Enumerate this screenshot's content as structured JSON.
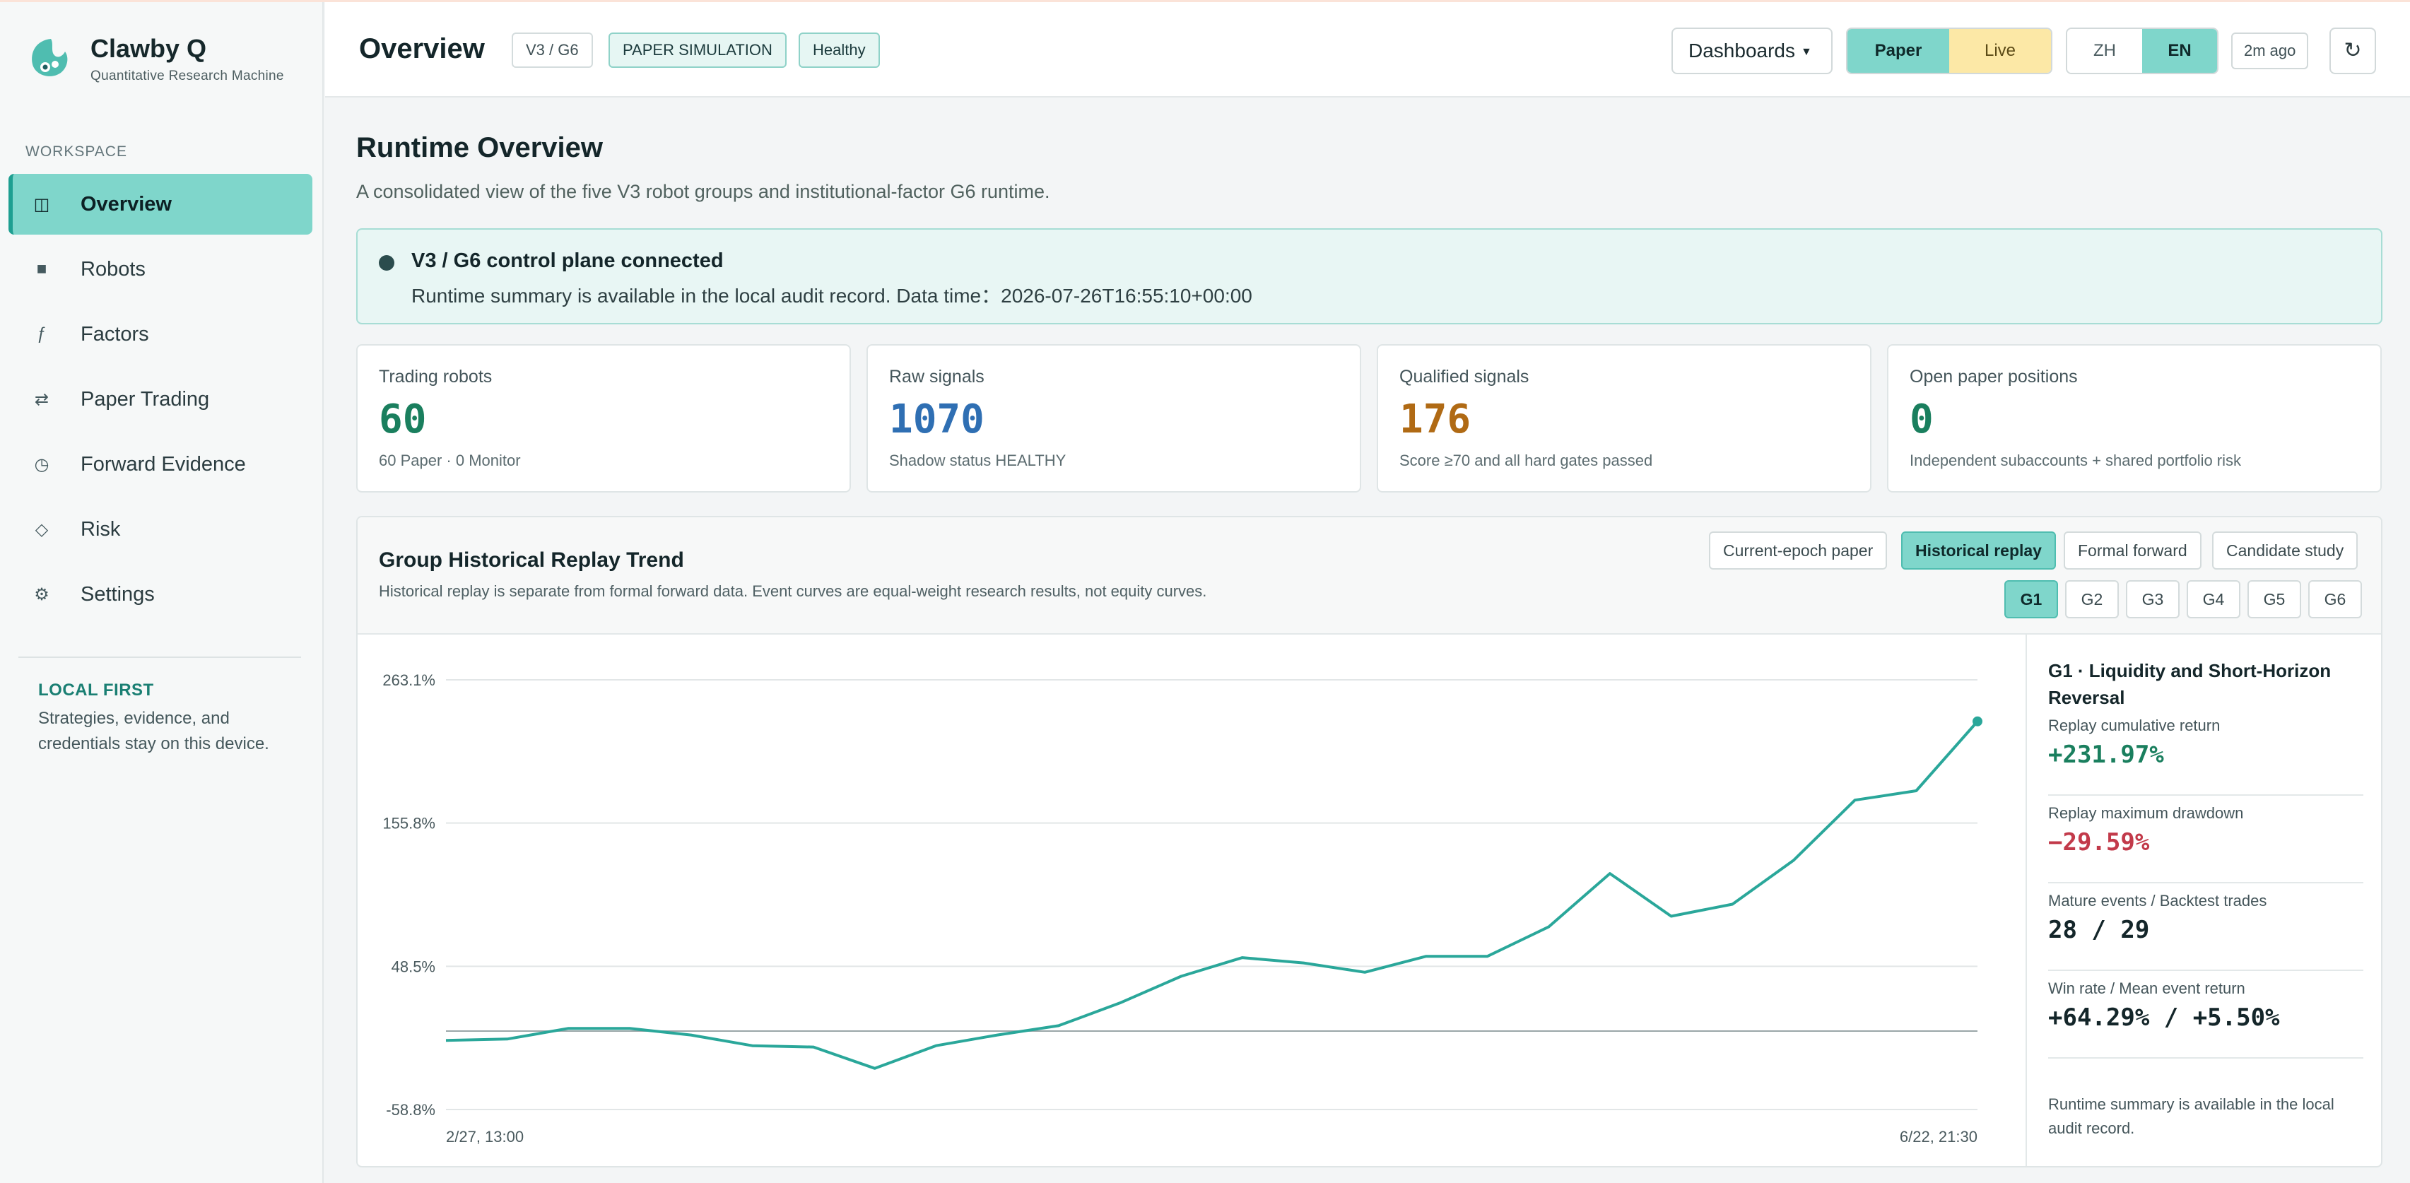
{
  "brand": {
    "name": "Clawby Q",
    "subtitle": "Quantitative Research Machine"
  },
  "sidebar": {
    "section_label": "WORKSPACE",
    "items": [
      {
        "label": "Overview",
        "icon": "layout-icon",
        "glyph": "◫",
        "active": true
      },
      {
        "label": "Robots",
        "icon": "robot-icon",
        "glyph": "■",
        "active": false
      },
      {
        "label": "Factors",
        "icon": "function-icon",
        "glyph": "ƒ",
        "active": false
      },
      {
        "label": "Paper Trading",
        "icon": "swap-icon",
        "glyph": "⇄",
        "active": false
      },
      {
        "label": "Forward Evidence",
        "icon": "clock-icon",
        "glyph": "◷",
        "active": false
      },
      {
        "label": "Risk",
        "icon": "diamond-icon",
        "glyph": "◇",
        "active": false
      },
      {
        "label": "Settings",
        "icon": "gear-icon",
        "glyph": "⚙",
        "active": false
      }
    ],
    "local_first": {
      "title": "LOCAL FIRST",
      "text": "Strategies, evidence, and credentials stay on this device."
    }
  },
  "header": {
    "title": "Overview",
    "chips": [
      "V3 / G6",
      "PAPER SIMULATION",
      "Healthy"
    ],
    "dashboards_label": "Dashboards",
    "mode": {
      "paper": "Paper",
      "live": "Live",
      "selected": "Paper"
    },
    "lang": {
      "zh": "ZH",
      "en": "EN",
      "selected": "EN"
    },
    "updated": "2m ago",
    "refresh_glyph": "↻"
  },
  "main": {
    "title": "Runtime Overview",
    "subtitle": "A consolidated view of the five V3 robot groups and institutional-factor G6 runtime."
  },
  "banner": {
    "title": "V3 / G6 control plane connected",
    "text": "Runtime summary is available in the local audit record. Data time：2026-07-26T16:55:10+00:00"
  },
  "cards": [
    {
      "label": "Trading robots",
      "value": "60",
      "note": "60 Paper · 0 Monitor",
      "color": "#1a7f5e"
    },
    {
      "label": "Raw signals",
      "value": "1070",
      "note": "Shadow status HEALTHY",
      "color": "#2f6fb3"
    },
    {
      "label": "Qualified signals",
      "value": "176",
      "note": "Score ≥70 and all hard gates passed",
      "color": "#b06a14"
    },
    {
      "label": "Open paper positions",
      "value": "0",
      "note": "Independent subaccounts + shared portfolio risk",
      "color": "#1a7f5e"
    }
  ],
  "panel": {
    "title": "Group Historical Replay Trend",
    "subtitle": "Historical replay is separate from formal forward data. Event curves are equal-weight research results, not equity curves.",
    "modes": [
      "Current-epoch paper",
      "Historical replay",
      "Formal forward",
      "Candidate study"
    ],
    "selected_mode": "Historical replay",
    "groups": [
      "G1",
      "G2",
      "G3",
      "G4",
      "G5",
      "G6"
    ],
    "selected_group": "G1",
    "side": {
      "title": "G1 · Liquidity and Short-Horizon Reversal",
      "stats": [
        {
          "label": "Replay cumulative return",
          "value": "+231.97%",
          "color": "#1a7f5e"
        },
        {
          "label": "Replay maximum drawdown",
          "value": "−29.59%",
          "color": "#c23a4a"
        },
        {
          "label": "Mature events / Backtest trades",
          "value": "28 / 29",
          "color": "#14262a"
        },
        {
          "label": "Win rate / Mean event return",
          "value": "+64.29% / +5.50%",
          "color": "#14262a"
        }
      ],
      "footer": "Runtime summary is available in the local audit record."
    }
  },
  "chart_data": {
    "type": "line",
    "title": "",
    "xlabel": "",
    "ylabel": "",
    "ylim": [
      -58.8,
      263.1
    ],
    "y_ticks": [
      "263.1%",
      "155.8%",
      "48.5%",
      "-58.8%"
    ],
    "y_tick_values": [
      263.1,
      155.8,
      48.5,
      -58.8
    ],
    "x_tick_labels": [
      "2/27, 13:00",
      "6/22, 21:30"
    ],
    "zero_line": 0,
    "line_color": "#2aa79a",
    "series": [
      {
        "values": [
          -7,
          -6,
          2,
          2,
          -3,
          -11,
          -12,
          -28,
          -11,
          -3,
          4,
          21,
          41,
          55,
          51,
          44,
          56,
          56,
          78,
          118,
          86,
          95,
          128,
          173,
          180,
          231.97
        ]
      }
    ]
  }
}
